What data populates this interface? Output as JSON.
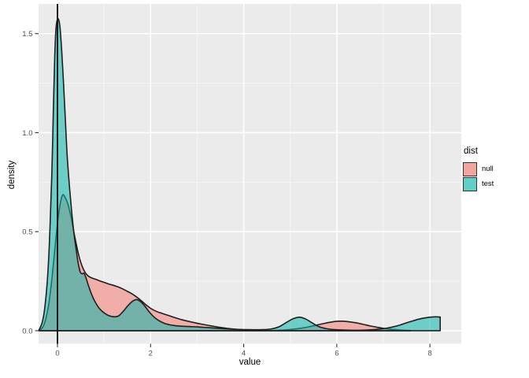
{
  "figure": {
    "legend": {
      "title": "dist",
      "items": [
        {
          "label": "null",
          "color": "#F2A49D"
        },
        {
          "label": "test",
          "color": "#62CFC9"
        }
      ]
    }
  },
  "chart_data": {
    "type": "area",
    "subtype": "density",
    "title": "",
    "xlabel": "value",
    "ylabel": "density",
    "x_domain": [
      -0.406,
      8.674
    ],
    "y_domain": [
      -0.066,
      1.65
    ],
    "x_ticks": {
      "values": [
        0,
        2,
        4,
        6,
        8
      ],
      "labels": [
        "0",
        "2",
        "4",
        "6",
        "8"
      ]
    },
    "y_ticks": {
      "values": [
        0,
        0.5,
        1.0,
        1.5
      ],
      "labels": [
        "0.0",
        "0.5",
        "1.0",
        "1.5"
      ]
    },
    "x_minor": [
      1,
      3,
      5,
      7
    ],
    "y_minor": [
      0.25,
      0.75,
      1.25
    ],
    "grid": "on",
    "legend_position": "right",
    "panel_bg": "#EBEBEB",
    "grid_major_color": "#FFFFFF",
    "grid_minor_color": "#FFFFFF",
    "grid_minor_opacity": 0.55,
    "tick_color": "#333333",
    "tick_label_color": "#4D4D4D",
    "outline_color": "#1F1F1F",
    "vline_x": 0,
    "vline_color": "#151515",
    "series": [
      {
        "name": "null",
        "fill": "#F1ADA7",
        "fill_opacity": 1,
        "points": [
          [
            -0.38,
            0.002
          ],
          [
            -0.31,
            0.02
          ],
          [
            -0.25,
            0.06
          ],
          [
            -0.19,
            0.13
          ],
          [
            -0.13,
            0.24
          ],
          [
            -0.07,
            0.38
          ],
          [
            -0.01,
            0.52
          ],
          [
            0.05,
            0.63
          ],
          [
            0.11,
            0.685
          ],
          [
            0.17,
            0.67
          ],
          [
            0.23,
            0.635
          ],
          [
            0.29,
            0.575
          ],
          [
            0.35,
            0.5
          ],
          [
            0.41,
            0.43
          ],
          [
            0.47,
            0.37
          ],
          [
            0.53,
            0.325
          ],
          [
            0.59,
            0.296
          ],
          [
            0.65,
            0.278
          ],
          [
            0.72,
            0.268
          ],
          [
            0.8,
            0.261
          ],
          [
            0.9,
            0.252
          ],
          [
            1.0,
            0.244
          ],
          [
            1.1,
            0.236
          ],
          [
            1.2,
            0.229
          ],
          [
            1.3,
            0.221
          ],
          [
            1.4,
            0.211
          ],
          [
            1.5,
            0.199
          ],
          [
            1.6,
            0.186
          ],
          [
            1.7,
            0.17
          ],
          [
            1.8,
            0.151
          ],
          [
            1.9,
            0.131
          ],
          [
            2.0,
            0.113
          ],
          [
            2.12,
            0.098
          ],
          [
            2.25,
            0.087
          ],
          [
            2.38,
            0.077
          ],
          [
            2.52,
            0.066
          ],
          [
            2.66,
            0.056
          ],
          [
            2.8,
            0.048
          ],
          [
            2.95,
            0.04
          ],
          [
            3.1,
            0.033
          ],
          [
            3.28,
            0.025
          ],
          [
            3.46,
            0.018
          ],
          [
            3.64,
            0.012
          ],
          [
            3.82,
            0.007
          ],
          [
            4.0,
            0.004
          ],
          [
            4.2,
            0.002
          ],
          [
            4.42,
            0.001
          ],
          [
            4.64,
            0.001
          ],
          [
            4.85,
            0.003
          ],
          [
            5.05,
            0.007
          ],
          [
            5.25,
            0.013
          ],
          [
            5.45,
            0.022
          ],
          [
            5.62,
            0.031
          ],
          [
            5.8,
            0.04
          ],
          [
            5.95,
            0.046
          ],
          [
            6.08,
            0.048
          ],
          [
            6.22,
            0.046
          ],
          [
            6.38,
            0.041
          ],
          [
            6.55,
            0.033
          ],
          [
            6.72,
            0.024
          ],
          [
            6.9,
            0.016
          ],
          [
            7.08,
            0.009
          ],
          [
            7.26,
            0.005
          ],
          [
            7.44,
            0.002
          ],
          [
            7.58,
            0.001
          ]
        ]
      },
      {
        "name": "test",
        "fill": "#0FB5AB",
        "fill_opacity": 0.56,
        "points": [
          [
            -0.4,
            0.002
          ],
          [
            -0.33,
            0.04
          ],
          [
            -0.27,
            0.12
          ],
          [
            -0.21,
            0.28
          ],
          [
            -0.16,
            0.52
          ],
          [
            -0.12,
            0.8
          ],
          [
            -0.09,
            1.1
          ],
          [
            -0.06,
            1.38
          ],
          [
            -0.03,
            1.53
          ],
          [
            0.01,
            1.575
          ],
          [
            0.05,
            1.54
          ],
          [
            0.09,
            1.42
          ],
          [
            0.13,
            1.25
          ],
          [
            0.17,
            1.06
          ],
          [
            0.21,
            0.88
          ],
          [
            0.26,
            0.72
          ],
          [
            0.31,
            0.59
          ],
          [
            0.36,
            0.48
          ],
          [
            0.41,
            0.395
          ],
          [
            0.45,
            0.335
          ],
          [
            0.49,
            0.296
          ],
          [
            0.53,
            0.287
          ],
          [
            0.57,
            0.29
          ],
          [
            0.61,
            0.268
          ],
          [
            0.66,
            0.232
          ],
          [
            0.73,
            0.185
          ],
          [
            0.81,
            0.145
          ],
          [
            0.9,
            0.112
          ],
          [
            1.0,
            0.09
          ],
          [
            1.1,
            0.076
          ],
          [
            1.22,
            0.07
          ],
          [
            1.32,
            0.076
          ],
          [
            1.42,
            0.1
          ],
          [
            1.52,
            0.128
          ],
          [
            1.62,
            0.15
          ],
          [
            1.7,
            0.157
          ],
          [
            1.78,
            0.148
          ],
          [
            1.87,
            0.126
          ],
          [
            1.96,
            0.098
          ],
          [
            2.06,
            0.072
          ],
          [
            2.17,
            0.052
          ],
          [
            2.3,
            0.037
          ],
          [
            2.45,
            0.028
          ],
          [
            2.62,
            0.023
          ],
          [
            2.8,
            0.021
          ],
          [
            3.0,
            0.019
          ],
          [
            3.25,
            0.015
          ],
          [
            3.5,
            0.011
          ],
          [
            3.8,
            0.007
          ],
          [
            4.1,
            0.005
          ],
          [
            4.4,
            0.005
          ],
          [
            4.6,
            0.009
          ],
          [
            4.76,
            0.02
          ],
          [
            4.92,
            0.042
          ],
          [
            5.06,
            0.06
          ],
          [
            5.2,
            0.068
          ],
          [
            5.34,
            0.058
          ],
          [
            5.48,
            0.038
          ],
          [
            5.62,
            0.02
          ],
          [
            5.78,
            0.01
          ],
          [
            5.95,
            0.005
          ],
          [
            6.15,
            0.003
          ],
          [
            6.4,
            0.002
          ],
          [
            6.65,
            0.003
          ],
          [
            6.88,
            0.007
          ],
          [
            7.1,
            0.014
          ],
          [
            7.32,
            0.026
          ],
          [
            7.54,
            0.043
          ],
          [
            7.76,
            0.058
          ],
          [
            7.96,
            0.067
          ],
          [
            8.12,
            0.07
          ],
          [
            8.22,
            0.069
          ]
        ]
      }
    ]
  }
}
